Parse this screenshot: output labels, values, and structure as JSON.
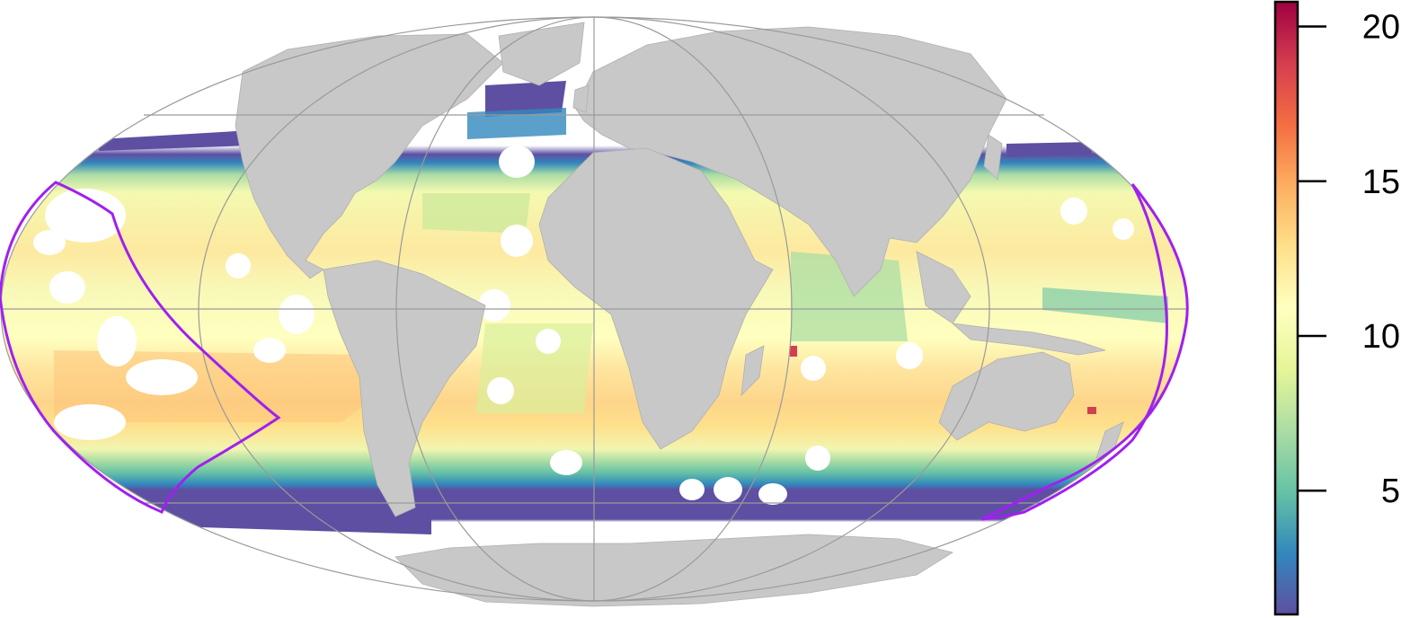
{
  "map": {
    "projection": "mollweide",
    "graticule_latitudes": [
      -60,
      0,
      60
    ],
    "graticule_longitudes": [
      -90,
      0,
      90
    ],
    "land_color": "#c8c8c8",
    "grid_color": "#9a9a9a",
    "boundary_color": "#a020f0",
    "missing_color": "#ffffff"
  },
  "colorbar": {
    "palette": "spectral",
    "colors": [
      "#5e4fa2",
      "#3288bd",
      "#66c2a5",
      "#abdda4",
      "#e6f598",
      "#ffffbf",
      "#fee08b",
      "#fdae61",
      "#f46d43",
      "#d53e4f",
      "#9e0142"
    ],
    "min": 1,
    "max": 20.8,
    "ticks": [
      {
        "value": 5,
        "label": "5"
      },
      {
        "value": 10,
        "label": "10"
      },
      {
        "value": 15,
        "label": "15"
      },
      {
        "value": 20,
        "label": "20"
      }
    ]
  },
  "bands": [
    {
      "lat": "far-south",
      "value": 1.5
    },
    {
      "lat": "subantarctic",
      "value": 4
    },
    {
      "lat": "southern-mid",
      "value": 10.5
    },
    {
      "lat": "southern-subtropics",
      "value": 13
    },
    {
      "lat": "tropics",
      "value": 10
    },
    {
      "lat": "northern-subtropics",
      "value": 11.5
    },
    {
      "lat": "northern-mid",
      "value": 7
    },
    {
      "lat": "far-north",
      "value": 2
    }
  ]
}
